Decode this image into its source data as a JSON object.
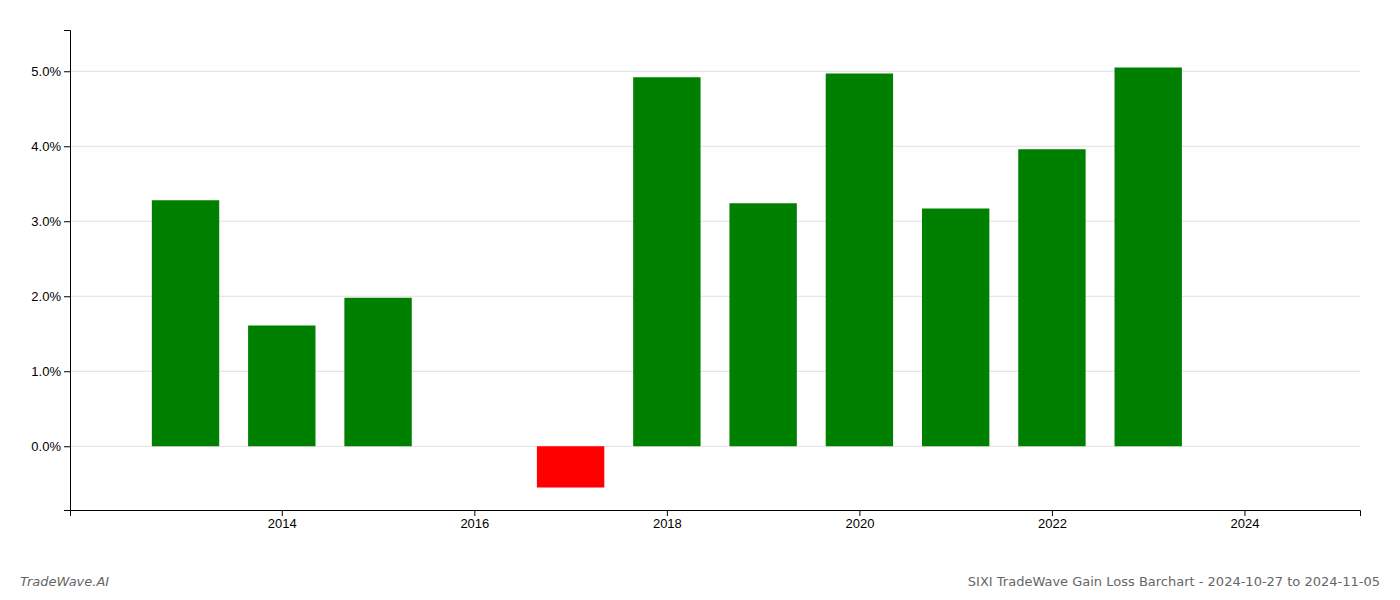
{
  "chart_data": {
    "type": "bar",
    "title": "SIXI TradeWave Gain Loss Barchart - 2024-10-27 to 2024-11-05",
    "annotations": [
      "TradeWave.AI"
    ],
    "x": [
      2013,
      2014,
      2015,
      2017,
      2018,
      2019,
      2020,
      2021,
      2022,
      2023
    ],
    "values": [
      3.28,
      1.61,
      1.98,
      -0.55,
      4.92,
      3.24,
      4.97,
      3.17,
      3.96,
      5.05
    ],
    "colors": [
      "#008000",
      "#008000",
      "#008000",
      "#ff0000",
      "#008000",
      "#008000",
      "#008000",
      "#008000",
      "#008000",
      "#008000"
    ],
    "xlim": [
      2011.8,
      2025.2
    ],
    "ylim": [
      -0.85,
      5.55
    ],
    "xticks": [
      2014,
      2016,
      2018,
      2020,
      2022,
      2024
    ],
    "yticks": [
      {
        "value": 0.0,
        "label": "0.0%"
      },
      {
        "value": 1.0,
        "label": "1.0%"
      },
      {
        "value": 2.0,
        "label": "2.0%"
      },
      {
        "value": 3.0,
        "label": "3.0%"
      },
      {
        "value": 4.0,
        "label": "4.0%"
      },
      {
        "value": 5.0,
        "label": "5.0%"
      }
    ],
    "grid": true
  }
}
